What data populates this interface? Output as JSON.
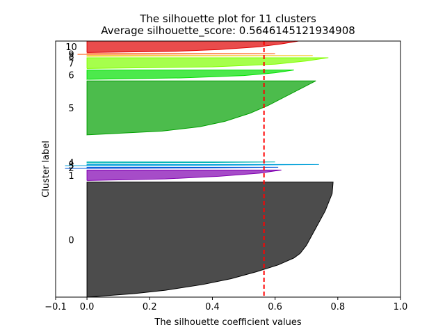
{
  "chart_data": {
    "type": "area",
    "title": "The silhouette plot for 11 clusters",
    "subtitle": "Average silhouette_score: 0.5646145121934908",
    "xlabel": "The silhouette coefficient values",
    "ylabel": "Cluster label",
    "xlim": [
      -0.1,
      1.0
    ],
    "ylim": [
      0,
      1660
    ],
    "xticks": [
      {
        "value": -0.1,
        "label": "−0.1"
      },
      {
        "value": 0.0,
        "label": "0.0"
      },
      {
        "value": 0.2,
        "label": "0.2"
      },
      {
        "value": 0.4,
        "label": "0.4"
      },
      {
        "value": 0.6,
        "label": "0.6"
      },
      {
        "value": 0.8,
        "label": "0.8"
      },
      {
        "value": 1.0,
        "label": "1.0"
      }
    ],
    "grid": false,
    "average_line": {
      "value": 0.5646145121934908,
      "color": "#ff0000",
      "style": "dashed"
    },
    "clusters": [
      {
        "label": "0",
        "start": 0,
        "end": 746,
        "color": "#000000",
        "max_value": 0.785,
        "profile": [
          [
            0,
            0.785
          ],
          [
            0.1,
            0.782
          ],
          [
            0.25,
            0.76
          ],
          [
            0.35,
            0.74
          ],
          [
            0.45,
            0.72
          ],
          [
            0.55,
            0.7
          ],
          [
            0.62,
            0.68
          ],
          [
            0.66,
            0.66
          ],
          [
            0.72,
            0.61
          ],
          [
            0.78,
            0.54
          ],
          [
            0.84,
            0.46
          ],
          [
            0.89,
            0.37
          ],
          [
            0.94,
            0.25
          ],
          [
            0.97,
            0.15
          ],
          [
            1.0,
            0.0
          ]
        ]
      },
      {
        "label": "1",
        "start": 756,
        "end": 824,
        "color": "#8000b0",
        "max_value": 0.62,
        "profile": [
          [
            0,
            0.62
          ],
          [
            0.3,
            0.55
          ],
          [
            0.6,
            0.42
          ],
          [
            0.85,
            0.25
          ],
          [
            1.0,
            0.0
          ]
        ]
      },
      {
        "label": "2",
        "start": 834,
        "end": 842,
        "color": "#0057d9",
        "max_value": 0.61,
        "profile": [
          [
            0,
            0.61
          ],
          [
            0.5,
            0.4
          ],
          [
            0.85,
            0.1
          ],
          [
            1.0,
            -0.07
          ]
        ]
      },
      {
        "label": "3",
        "start": 852,
        "end": 860,
        "color": "#00a0d9",
        "max_value": 0.74,
        "profile": [
          [
            0,
            0.74
          ],
          [
            0.5,
            0.5
          ],
          [
            0.85,
            0.2
          ],
          [
            1.0,
            -0.07
          ]
        ]
      },
      {
        "label": "4",
        "start": 870,
        "end": 876,
        "color": "#00b3b3",
        "max_value": 0.6,
        "profile": [
          [
            0,
            0.6
          ],
          [
            0.5,
            0.4
          ],
          [
            1.0,
            0.05
          ]
        ]
      },
      {
        "label": "5",
        "start": 1052,
        "end": 1402,
        "color": "#00a000",
        "max_value": 0.73,
        "profile": [
          [
            0,
            0.73
          ],
          [
            0.15,
            0.68
          ],
          [
            0.3,
            0.63
          ],
          [
            0.45,
            0.58
          ],
          [
            0.6,
            0.52
          ],
          [
            0.75,
            0.44
          ],
          [
            0.85,
            0.36
          ],
          [
            0.93,
            0.24
          ],
          [
            1.0,
            0.0
          ]
        ]
      },
      {
        "label": "6",
        "start": 1412,
        "end": 1472,
        "color": "#00e000",
        "max_value": 0.66,
        "profile": [
          [
            0,
            0.66
          ],
          [
            0.3,
            0.6
          ],
          [
            0.6,
            0.5
          ],
          [
            0.85,
            0.3
          ],
          [
            1.0,
            0.0
          ]
        ]
      },
      {
        "label": "7",
        "start": 1482,
        "end": 1552,
        "color": "#80ff00",
        "max_value": 0.77,
        "profile": [
          [
            0,
            0.77
          ],
          [
            0.3,
            0.7
          ],
          [
            0.6,
            0.6
          ],
          [
            0.85,
            0.4
          ],
          [
            1.0,
            0.0
          ]
        ]
      },
      {
        "label": "8",
        "start": 1562,
        "end": 1566,
        "color": "#f0c000",
        "max_value": 0.72,
        "profile": [
          [
            0,
            0.72
          ],
          [
            1.0,
            0.0
          ]
        ]
      },
      {
        "label": "9",
        "start": 1574,
        "end": 1578,
        "color": "#ff5000",
        "max_value": 0.6,
        "profile": [
          [
            0,
            0.6
          ],
          [
            1.0,
            -0.03
          ]
        ]
      },
      {
        "label": "10",
        "start": 1586,
        "end": 1660,
        "color": "#e00000",
        "max_value": 0.675,
        "profile": [
          [
            0,
            0.675
          ],
          [
            0.25,
            0.62
          ],
          [
            0.5,
            0.55
          ],
          [
            0.75,
            0.42
          ],
          [
            0.9,
            0.28
          ],
          [
            1.0,
            0.0
          ]
        ]
      }
    ]
  }
}
